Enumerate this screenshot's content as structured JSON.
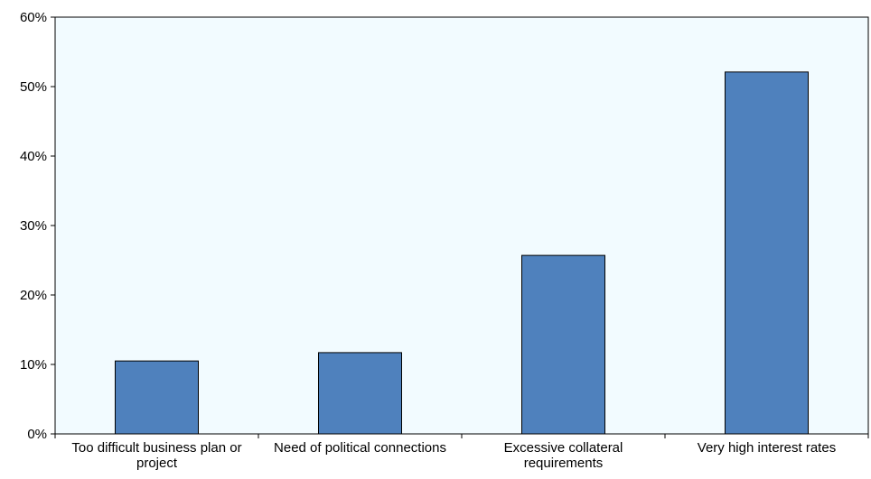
{
  "chart_data": {
    "type": "bar",
    "categories": [
      [
        "Too difficult business plan or",
        "project"
      ],
      [
        "Need of political connections"
      ],
      [
        "Excessive collateral",
        "requirements"
      ],
      [
        "Very high interest rates"
      ]
    ],
    "values": [
      10.5,
      11.7,
      25.7,
      52.1
    ],
    "yticks": [
      "0%",
      "10%",
      "20%",
      "30%",
      "40%",
      "50%",
      "60%"
    ],
    "ylim": [
      0,
      60
    ],
    "title": "",
    "xlabel": "",
    "ylabel": "",
    "grid": false,
    "colors": {
      "bar": "#4F81BD",
      "bar_stroke": "#000000",
      "plot_background": "#F2FBFF",
      "axis": "#000000"
    }
  }
}
